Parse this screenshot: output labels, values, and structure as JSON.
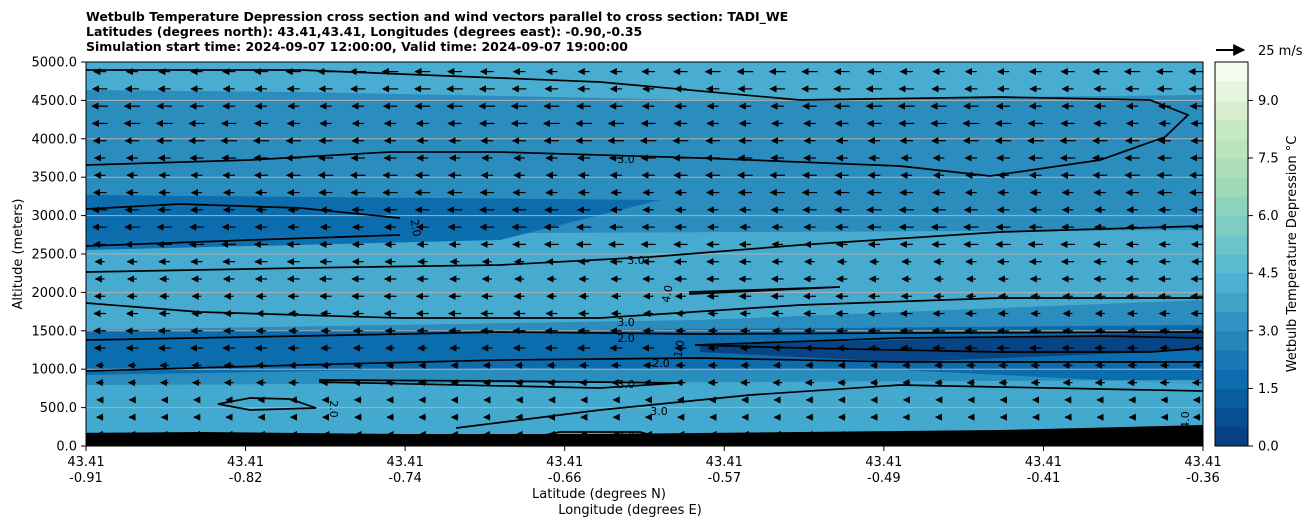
{
  "chart_data": {
    "type": "contourf",
    "title_lines": [
      "Wetbulb Temperature Depression cross section and wind vectors parallel to cross section: TADI_WE",
      "Latitudes (degrees north): 43.41,43.41, Longitudes (degrees east): -0.90,-0.35",
      "Simulation start time: 2024-09-07 12:00:00, Valid time: 2024-09-07 19:00:00"
    ],
    "ylabel": "Altitude (meters)",
    "xlabel_lat": "Latitude (degrees N)",
    "xlabel_lon": "Longitude (degrees E)",
    "ylim": [
      0,
      5000
    ],
    "yticks": [
      "0.0",
      "500.0",
      "1000.0",
      "1500.0",
      "2000.0",
      "2500.0",
      "3000.0",
      "3500.0",
      "4000.0",
      "4500.0",
      "5000.0"
    ],
    "xticks": [
      {
        "lat": "43.41",
        "lon": "-0.91"
      },
      {
        "lat": "43.41",
        "lon": "-0.82"
      },
      {
        "lat": "43.41",
        "lon": "-0.74"
      },
      {
        "lat": "43.41",
        "lon": "-0.66"
      },
      {
        "lat": "43.41",
        "lon": "-0.57"
      },
      {
        "lat": "43.41",
        "lon": "-0.49"
      },
      {
        "lat": "43.41",
        "lon": "-0.41"
      },
      {
        "lat": "43.41",
        "lon": "-0.36"
      }
    ],
    "colorbar": {
      "label": "Wetbulb Temperature Depression °C",
      "range": [
        0,
        10
      ],
      "ticks": [
        "0.0",
        "1.5",
        "3.0",
        "4.5",
        "6.0",
        "7.5",
        "9.0"
      ],
      "colors": [
        "#084081",
        "#0868ac",
        "#2b8cbe",
        "#4eb3d3",
        "#7bccc4",
        "#a8ddb5",
        "#ccebc5",
        "#f7fcf0"
      ]
    },
    "wind_key": "25 m/s",
    "contour_labels": [
      "3.0",
      "2.0",
      "3.0",
      "4.0",
      "3.0",
      "2.0",
      "1.0",
      "2.0",
      "3.0",
      "2.0",
      "3.0",
      "3.0",
      "4.0"
    ]
  }
}
